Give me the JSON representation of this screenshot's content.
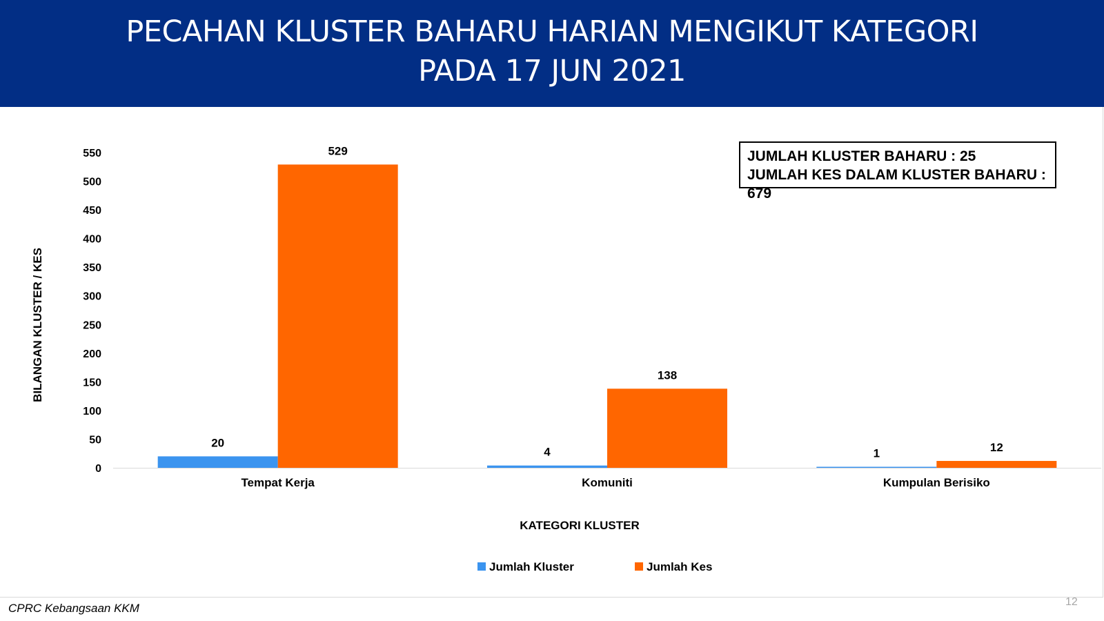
{
  "header": {
    "title_line1": "PECAHAN KLUSTER BAHARU HARIAN MENGIKUT KATEGORI",
    "title_line2": "PADA 17 JUN 2021",
    "background": "#022e85"
  },
  "summary_box": {
    "line1": "JUMLAH KLUSTER BAHARU : 25",
    "line2": "JUMLAH KES DALAM KLUSTER BAHARU : 679"
  },
  "chart_data": {
    "type": "bar",
    "categories": [
      "Tempat Kerja",
      "Komuniti",
      "Kumpulan Berisiko"
    ],
    "series": [
      {
        "name": "Jumlah Kluster",
        "color": "#3b94ef",
        "values": [
          20,
          4,
          1
        ]
      },
      {
        "name": "Jumlah Kes",
        "color": "#ff6600",
        "values": [
          529,
          138,
          12
        ]
      }
    ],
    "xlabel": "KATEGORI KLUSTER",
    "ylabel": "BILANGAN KLUSTER / KES",
    "ylim": [
      0,
      550
    ],
    "yticks": [
      0,
      50,
      100,
      150,
      200,
      250,
      300,
      350,
      400,
      450,
      500,
      550
    ],
    "grid": false,
    "legend": "bottom",
    "data_labels": true
  },
  "footer": {
    "source": "CPRC Kebangsaan KKM",
    "page_number": "12"
  }
}
